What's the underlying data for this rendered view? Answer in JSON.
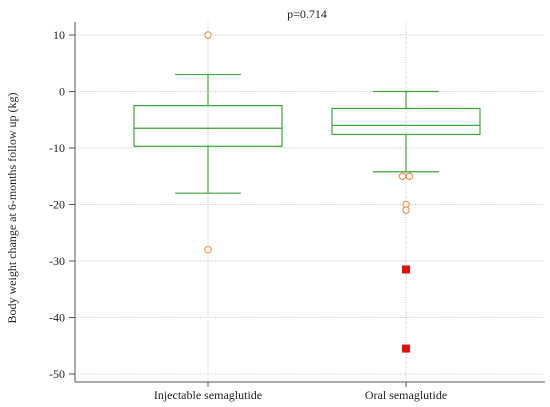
{
  "chart_data": {
    "type": "box",
    "title": "",
    "annotation": "p=0.714",
    "ylabel": "Body weight change at 6-months follow up (kg)",
    "xlabel": "",
    "ylim": [
      -52,
      12
    ],
    "yticks": [
      10,
      0,
      -10,
      -20,
      -30,
      -40,
      -50
    ],
    "grid": true,
    "colors": {
      "box": "#3aa63a",
      "outlier": "#e8843a",
      "far_outlier": "#e01010",
      "grid": "#b0b0b0",
      "axis": "#555555"
    },
    "groups": [
      {
        "name": "Injectable semaglutide",
        "whisker_low": -18,
        "q1": -9.7,
        "median": -6.5,
        "q3": -2.5,
        "whisker_high": 3,
        "outliers": [
          10,
          -28
        ],
        "far_outliers": []
      },
      {
        "name": "Oral semaglutide",
        "whisker_low": -14.2,
        "q1": -7.6,
        "median": -6,
        "q3": -3,
        "whisker_high": 0,
        "outliers": [
          -15,
          -15,
          -20,
          -21
        ],
        "far_outliers": [
          -31.5,
          -45.5
        ]
      }
    ]
  }
}
